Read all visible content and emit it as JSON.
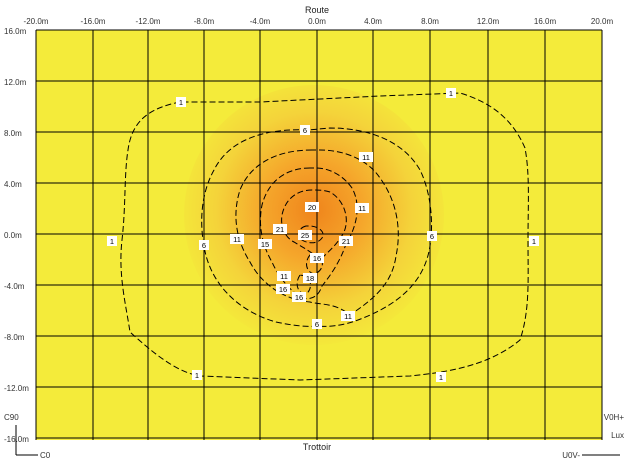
{
  "header": {
    "top_label": "Route"
  },
  "footer": {
    "bottom_label": "Trottoir"
  },
  "axes": {
    "x_ticks": [
      "-20.0m",
      "-16.0m",
      "-12.0m",
      "-8.0m",
      "-4.0m",
      "0.0m",
      "4.0m",
      "8.0m",
      "12.0m",
      "16.0m",
      "20.0m"
    ],
    "y_ticks": [
      "16.0m",
      "12.0m",
      "8.0m",
      "4.0m",
      "0.0m",
      "-4.0m",
      "-8.0m",
      "-12.0m",
      "-16.0m"
    ]
  },
  "corner_labels": {
    "left_mid": "C90",
    "left_bottom": "C0",
    "right_mid": "V0H+",
    "right_unit": "Lux",
    "right_bottom": "U0V-"
  },
  "contour_labels": [
    "1",
    "1",
    "1",
    "1",
    "1",
    "1",
    "6",
    "6",
    "6",
    "6",
    "11",
    "11",
    "11",
    "11",
    "11",
    "15",
    "16",
    "16",
    "20",
    "21",
    "21",
    "25",
    "16",
    "18"
  ],
  "colors": {
    "background": "#f4eb3a",
    "center": "#f08a1e",
    "grid": "#000000",
    "contour": "#000000"
  }
}
